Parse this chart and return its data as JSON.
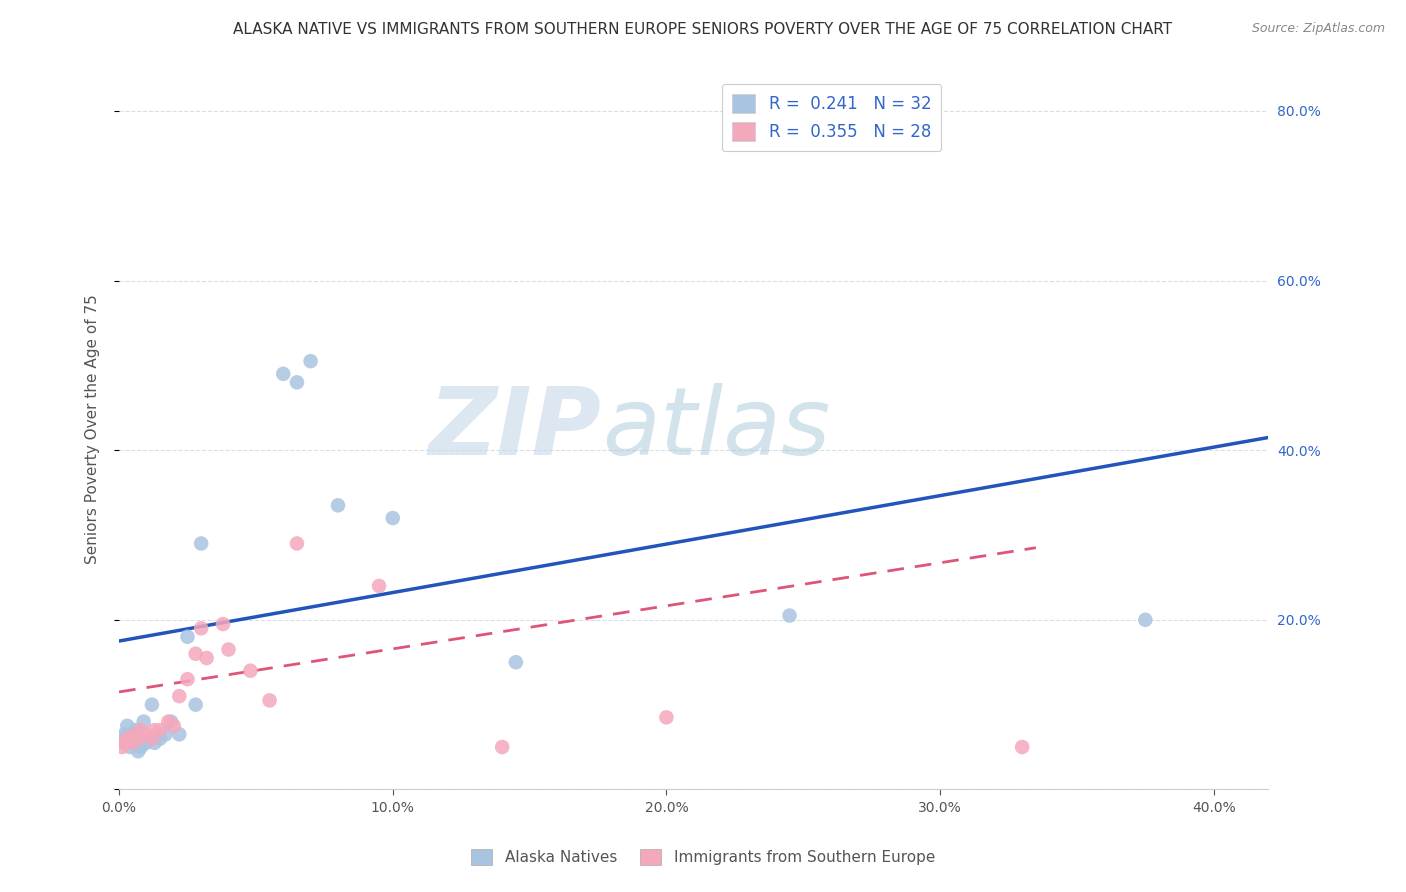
{
  "title": "ALASKA NATIVE VS IMMIGRANTS FROM SOUTHERN EUROPE SENIORS POVERTY OVER THE AGE OF 75 CORRELATION CHART",
  "source": "Source: ZipAtlas.com",
  "ylabel": "Seniors Poverty Over the Age of 75",
  "xlim": [
    0.0,
    0.42
  ],
  "ylim": [
    0.0,
    0.85
  ],
  "alaska_R": 0.241,
  "alaska_N": 32,
  "southern_R": 0.355,
  "southern_N": 28,
  "alaska_color": "#a8c4e0",
  "southern_color": "#f4a8bc",
  "alaska_line_color": "#2255bb",
  "southern_line_color": "#dd5577",
  "watermark_zip": "ZIP",
  "watermark_atlas": "atlas",
  "bg_color": "#ffffff",
  "grid_color": "#d8dde8",
  "title_fontsize": 11,
  "axis_label_fontsize": 11,
  "tick_fontsize": 10,
  "legend_fontsize": 12,
  "alaska_x": [
    0.001,
    0.002,
    0.002,
    0.003,
    0.003,
    0.004,
    0.004,
    0.005,
    0.005,
    0.006,
    0.007,
    0.007,
    0.008,
    0.009,
    0.01,
    0.012,
    0.013,
    0.015,
    0.017,
    0.019,
    0.022,
    0.025,
    0.028,
    0.03,
    0.06,
    0.065,
    0.07,
    0.08,
    0.1,
    0.145,
    0.245,
    0.375
  ],
  "alaska_y": [
    0.06,
    0.065,
    0.055,
    0.055,
    0.075,
    0.05,
    0.06,
    0.06,
    0.065,
    0.07,
    0.045,
    0.06,
    0.05,
    0.08,
    0.055,
    0.1,
    0.055,
    0.06,
    0.065,
    0.08,
    0.065,
    0.18,
    0.1,
    0.29,
    0.49,
    0.48,
    0.505,
    0.335,
    0.32,
    0.15,
    0.205,
    0.2
  ],
  "southern_x": [
    0.001,
    0.002,
    0.003,
    0.004,
    0.005,
    0.006,
    0.007,
    0.008,
    0.01,
    0.012,
    0.013,
    0.015,
    0.018,
    0.02,
    0.022,
    0.025,
    0.028,
    0.03,
    0.032,
    0.038,
    0.04,
    0.048,
    0.055,
    0.065,
    0.095,
    0.14,
    0.2,
    0.33
  ],
  "southern_y": [
    0.05,
    0.055,
    0.06,
    0.06,
    0.055,
    0.065,
    0.06,
    0.07,
    0.065,
    0.06,
    0.07,
    0.07,
    0.08,
    0.075,
    0.11,
    0.13,
    0.16,
    0.19,
    0.155,
    0.195,
    0.165,
    0.14,
    0.105,
    0.29,
    0.24,
    0.05,
    0.085,
    0.05
  ],
  "alaska_line_x0": 0.0,
  "alaska_line_x1": 0.42,
  "alaska_line_y0": 0.175,
  "alaska_line_y1": 0.415,
  "southern_line_x0": 0.0,
  "southern_line_x1": 0.335,
  "southern_line_y0": 0.115,
  "southern_line_y1": 0.285
}
